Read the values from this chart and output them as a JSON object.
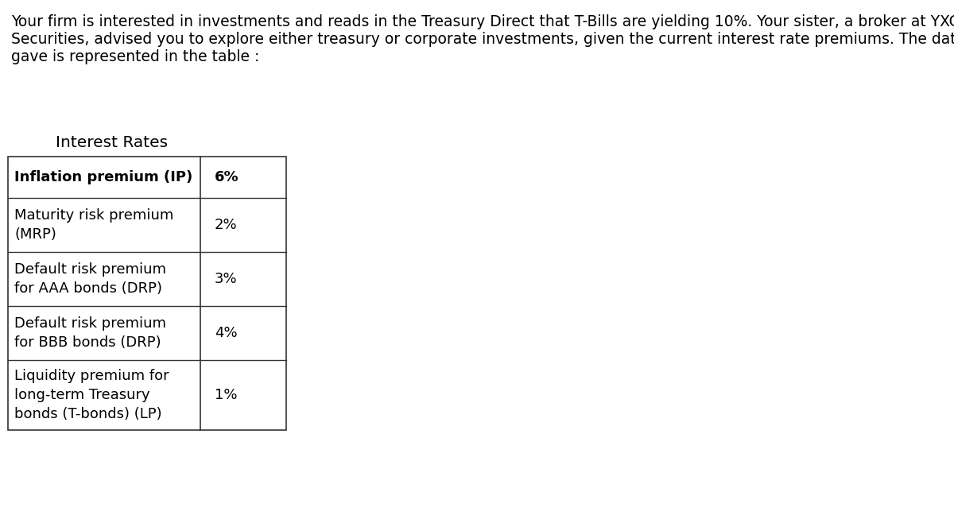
{
  "paragraph_lines": [
    "Your firm is interested in investments and reads in the Treasury Direct that T-Bills are yielding 10%. Your sister, a broker at YXC",
    "Securities, advised you to explore either treasury or corporate investments, given the current interest rate premiums. The data she",
    "gave is represented in the table :"
  ],
  "table_title": "Interest Rates",
  "rows": [
    {
      "label": "Inflation premium (IP)",
      "value": "6%",
      "bold": true,
      "lines": 1
    },
    {
      "label": "Maturity risk premium\n(MRP)",
      "value": "2%",
      "bold": false,
      "lines": 2
    },
    {
      "label": "Default risk premium\nfor AAA bonds (DRP)",
      "value": "3%",
      "bold": false,
      "lines": 2
    },
    {
      "label": "Default risk premium\nfor BBB bonds (DRP)",
      "value": "4%",
      "bold": false,
      "lines": 2
    },
    {
      "label": "Liquidity premium for\nlong-term Treasury\nbonds (T-bonds) (LP)",
      "value": "1%",
      "bold": false,
      "lines": 3
    }
  ],
  "background_color": "#ffffff",
  "font_size_paragraph": 13.5,
  "font_size_title": 14.5,
  "font_size_table": 13.0
}
